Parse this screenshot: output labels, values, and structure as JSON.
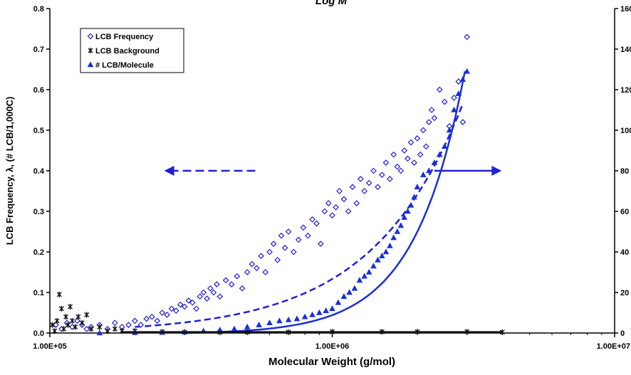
{
  "chart_data": {
    "type": "scatter",
    "title": "Log M",
    "xlabel": "Molecular Weight (g/mol)",
    "ylabel": "LCB Frequency, λ, (# LCB/1,000C)",
    "y2label": "",
    "x_scale": "log",
    "xlim": [
      100000,
      10000000
    ],
    "ylim": [
      0,
      0.8
    ],
    "y2lim": [
      0,
      160
    ],
    "x_ticks": [
      100000,
      1000000,
      10000000
    ],
    "x_tick_labels": [
      "1.00E+05",
      "1.00E+06",
      "1.00E+07"
    ],
    "y_tick_labels": [
      "0.0",
      "0.1",
      "0.2",
      "0.3",
      "0.4",
      "0.5",
      "0.6",
      "0.7",
      "0.8"
    ],
    "y2_tick_labels": [
      "0",
      "20",
      "40",
      "60",
      "80",
      "100",
      "120",
      "140",
      "160"
    ],
    "grid": false,
    "legend_position": "top-left",
    "series": [
      {
        "name": "LCB Frequency",
        "axis": "left",
        "marker": "open-diamond",
        "color": "#1f1fd8",
        "x": [
          105000,
          110000,
          115000,
          120000,
          125000,
          130000,
          135000,
          140000,
          150000,
          160000,
          170000,
          180000,
          190000,
          200000,
          210000,
          220000,
          230000,
          240000,
          250000,
          260000,
          270000,
          280000,
          290000,
          300000,
          310000,
          320000,
          330000,
          340000,
          350000,
          360000,
          370000,
          380000,
          390000,
          400000,
          420000,
          440000,
          460000,
          480000,
          500000,
          520000,
          540000,
          560000,
          580000,
          600000,
          620000,
          640000,
          660000,
          680000,
          700000,
          730000,
          760000,
          790000,
          820000,
          850000,
          880000,
          910000,
          940000,
          970000,
          1000000,
          1030000,
          1060000,
          1100000,
          1140000,
          1180000,
          1220000,
          1260000,
          1300000,
          1350000,
          1400000,
          1450000,
          1500000,
          1550000,
          1600000,
          1650000,
          1700000,
          1750000,
          1800000,
          1850000,
          1900000,
          1950000,
          2000000,
          2050000,
          2100000,
          2150000,
          2200000,
          2250000,
          2300000,
          2400000,
          2500000,
          2600000,
          2700000,
          2800000,
          2900000,
          3000000
        ],
        "y": [
          0.02,
          0.01,
          0.025,
          0.015,
          0.03,
          0.02,
          0.01,
          0.015,
          0.02,
          0.01,
          0.025,
          0.015,
          0.02,
          0.03,
          0.02,
          0.035,
          0.04,
          0.03,
          0.05,
          0.045,
          0.06,
          0.055,
          0.07,
          0.065,
          0.08,
          0.075,
          0.06,
          0.09,
          0.1,
          0.085,
          0.11,
          0.1,
          0.12,
          0.09,
          0.13,
          0.12,
          0.14,
          0.11,
          0.15,
          0.17,
          0.16,
          0.19,
          0.15,
          0.2,
          0.22,
          0.18,
          0.24,
          0.21,
          0.25,
          0.2,
          0.23,
          0.26,
          0.24,
          0.28,
          0.27,
          0.22,
          0.3,
          0.32,
          0.29,
          0.31,
          0.35,
          0.33,
          0.3,
          0.36,
          0.32,
          0.38,
          0.35,
          0.37,
          0.4,
          0.36,
          0.39,
          0.42,
          0.38,
          0.44,
          0.41,
          0.4,
          0.45,
          0.43,
          0.47,
          0.42,
          0.48,
          0.44,
          0.5,
          0.46,
          0.52,
          0.55,
          0.53,
          0.6,
          0.57,
          0.51,
          0.58,
          0.62,
          0.52,
          0.73
        ],
        "fit": {
          "style": "dashed",
          "x": [
            200000,
            2900000
          ],
          "y": [
            0.015,
            0.565
          ],
          "shape": "exponential"
        }
      },
      {
        "name": "LCB Background",
        "axis": "left",
        "marker": "asterisk",
        "color": "#111111",
        "x": [
          102000,
          104000,
          106000,
          108000,
          110000,
          112000,
          114000,
          116000,
          118000,
          120000,
          123000,
          126000,
          130000,
          135000,
          140000,
          150000,
          160000,
          170000,
          180000,
          200000,
          250000,
          300000,
          400000,
          500000,
          700000,
          1000000,
          1500000,
          2000000,
          3000000,
          4000000
        ],
        "y": [
          0.02,
          0.005,
          0.03,
          0.095,
          0.06,
          0.01,
          0.04,
          0.02,
          0.065,
          0.03,
          0.015,
          0.04,
          0.025,
          0.045,
          0.01,
          0.015,
          0.005,
          0.01,
          0.005,
          0.005,
          0.003,
          0.002,
          0.002,
          0.002,
          0.002,
          0.003,
          0.003,
          0.003,
          0.003,
          0.002
        ]
      },
      {
        "name": "# LCB/Molecule",
        "axis": "right",
        "marker": "filled-triangle",
        "color": "#1a2fd6",
        "x": [
          150000,
          200000,
          250000,
          300000,
          350000,
          400000,
          450000,
          500000,
          550000,
          600000,
          650000,
          700000,
          750000,
          800000,
          850000,
          900000,
          950000,
          1000000,
          1050000,
          1100000,
          1150000,
          1200000,
          1250000,
          1300000,
          1350000,
          1400000,
          1450000,
          1500000,
          1550000,
          1600000,
          1650000,
          1700000,
          1750000,
          1800000,
          1850000,
          1900000,
          1950000,
          2000000,
          2100000,
          2200000,
          2300000,
          2400000,
          2500000,
          2600000,
          2700000,
          2800000,
          2900000,
          3000000
        ],
        "y": [
          0,
          0.2,
          0.3,
          0.5,
          1,
          1.5,
          2,
          3,
          4,
          5,
          6,
          6.5,
          7,
          8,
          9,
          10,
          11,
          12,
          15,
          18,
          20,
          22,
          26,
          28,
          30,
          33,
          36,
          38,
          40,
          43,
          47,
          50,
          53,
          57,
          60,
          63,
          67,
          72,
          78,
          80,
          84,
          88,
          92,
          100,
          110,
          118,
          125,
          129
        ],
        "fit": {
          "style": "solid",
          "x": [
            300000,
            2950000
          ],
          "y": [
            0,
            129
          ],
          "shape": "exponential"
        }
      }
    ],
    "annotations": [
      {
        "type": "arrow",
        "direction": "left",
        "style": "dashed",
        "meaning": "points to left axis"
      },
      {
        "type": "arrow",
        "direction": "right",
        "style": "solid",
        "meaning": "points to right axis"
      }
    ]
  }
}
